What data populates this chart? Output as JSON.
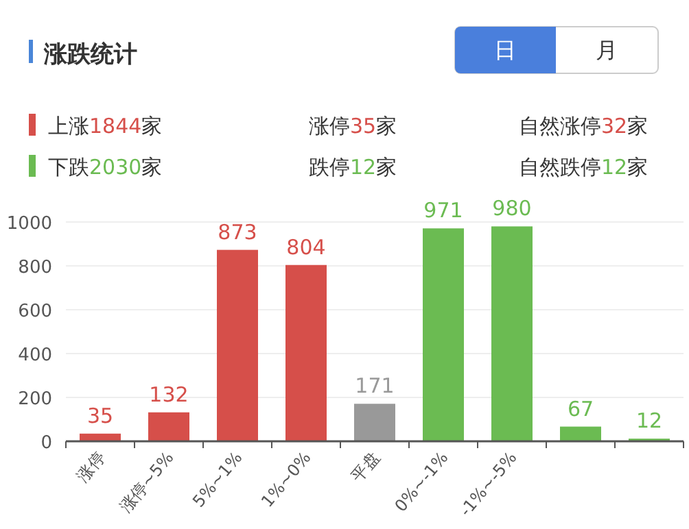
{
  "chart_data": {
    "type": "bar",
    "title": "涨跌统计",
    "categories": [
      "涨停",
      "涨停~5%",
      "5%~1%",
      "1%~0%",
      "平盘",
      "0%~-1%",
      "-1%~-5%",
      null,
      null
    ],
    "values": [
      35,
      132,
      873,
      804,
      171,
      971,
      980,
      67,
      12
    ],
    "colors": [
      "#d64f4a",
      "#d64f4a",
      "#d64f4a",
      "#d64f4a",
      "#999999",
      "#6bbb52",
      "#6bbb52",
      "#6bbb52",
      "#6bbb52"
    ],
    "ylim": [
      0,
      1000
    ],
    "yticks": [
      0,
      200,
      400,
      600,
      800,
      1000
    ],
    "grid": "y",
    "data_labels": true,
    "annotations": [
      "日",
      "月",
      "上涨1844家",
      "涨停35家",
      "自然涨停32家",
      "下跌2030家",
      "跌停12家",
      "自然跌停12家"
    ]
  }
}
